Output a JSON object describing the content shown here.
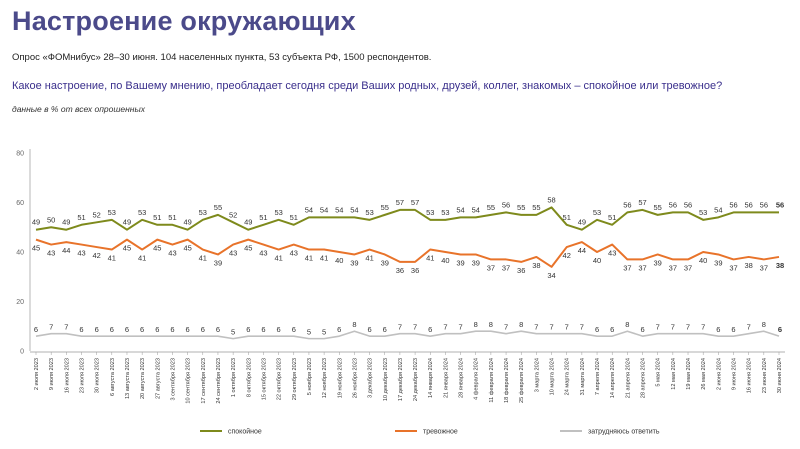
{
  "header": {
    "title": "Настроение окружающих",
    "subtitle": "Опрос «ФОМнибус» 28–30 июня. 104 населенных пункта, 53 субъекта РФ, 1500 респондентов.",
    "question": "Какое настроение, по Вашему мнению, преобладает сегодня среди Ваших родных, друзей, коллег, знакомых – спокойное или тревожное?",
    "note": "данные в % от всех опрошенных"
  },
  "chart_data": {
    "type": "line",
    "ylim": [
      0,
      80
    ],
    "yticks": [
      0,
      20,
      40,
      60,
      80
    ],
    "grid": false,
    "legend_position": "bottom",
    "x": [
      "2 июля 2023",
      "9 июля 2023",
      "16 июля 2023",
      "23 июля 2023",
      "30 июля 2023",
      "6 августа 2023",
      "13 августа 2023",
      "20 августа 2023",
      "27 августа 2023",
      "3 сентября 2023",
      "10 сентября 2023",
      "17 сентября 2023",
      "24 сентября 2023",
      "1 октября 2023",
      "8 октября 2023",
      "15 октября 2023",
      "22 октября 2023",
      "29 октября 2023",
      "5 ноября 2023",
      "12 ноября 2023",
      "19 ноября 2023",
      "26 ноября 2023",
      "3 декабря 2023",
      "10 декабря 2023",
      "17 декабря 2023",
      "24 декабря 2023",
      "14 января 2024",
      "21 января 2024",
      "28 января 2024",
      "4 февраля 2024",
      "11 февраля 2024",
      "18 февраля 2024",
      "25 февраля 2024",
      "3 марта 2024",
      "10 марта 2024",
      "24 марта 2024",
      "31 марта 2024",
      "7 апреля 2024",
      "14 апреля 2024",
      "21 апреля 2024",
      "28 апреля 2024",
      "5 мая 2024",
      "12 мая 2024",
      "19 мая 2024",
      "26 мая 2024",
      "2 июня 2024",
      "9 июня 2024",
      "16 июня 2024",
      "23 июня 2024",
      "30 июня 2024"
    ],
    "series": [
      {
        "name": "спокойное",
        "color": "#7e8a1c",
        "values": [
          49,
          50,
          49,
          51,
          52,
          53,
          49,
          53,
          51,
          51,
          49,
          53,
          55,
          52,
          49,
          51,
          53,
          51,
          54,
          54,
          54,
          54,
          53,
          55,
          57,
          57,
          53,
          53,
          54,
          54,
          55,
          56,
          55,
          55,
          58,
          51,
          49,
          53,
          51,
          56,
          57,
          55,
          56,
          56,
          53,
          54,
          56,
          56,
          56,
          56
        ]
      },
      {
        "name": "тревожное",
        "color": "#e8732a",
        "values": [
          45,
          43,
          44,
          43,
          42,
          41,
          45,
          41,
          45,
          43,
          45,
          41,
          39,
          43,
          45,
          43,
          41,
          43,
          41,
          41,
          40,
          39,
          41,
          39,
          36,
          36,
          41,
          40,
          39,
          39,
          37,
          37,
          36,
          38,
          34,
          42,
          44,
          40,
          43,
          37,
          37,
          39,
          37,
          37,
          40,
          39,
          37,
          38,
          37,
          38
        ]
      },
      {
        "name": "затрудняюсь ответить",
        "color": "#c0c0c0",
        "values": [
          6,
          7,
          7,
          6,
          6,
          6,
          6,
          6,
          6,
          6,
          6,
          6,
          6,
          5,
          6,
          6,
          6,
          6,
          5,
          5,
          6,
          8,
          6,
          6,
          7,
          7,
          6,
          7,
          7,
          8,
          8,
          7,
          8,
          7,
          7,
          7,
          7,
          6,
          6,
          8,
          6,
          7,
          7,
          7,
          7,
          6,
          6,
          7,
          8,
          6
        ]
      }
    ]
  }
}
